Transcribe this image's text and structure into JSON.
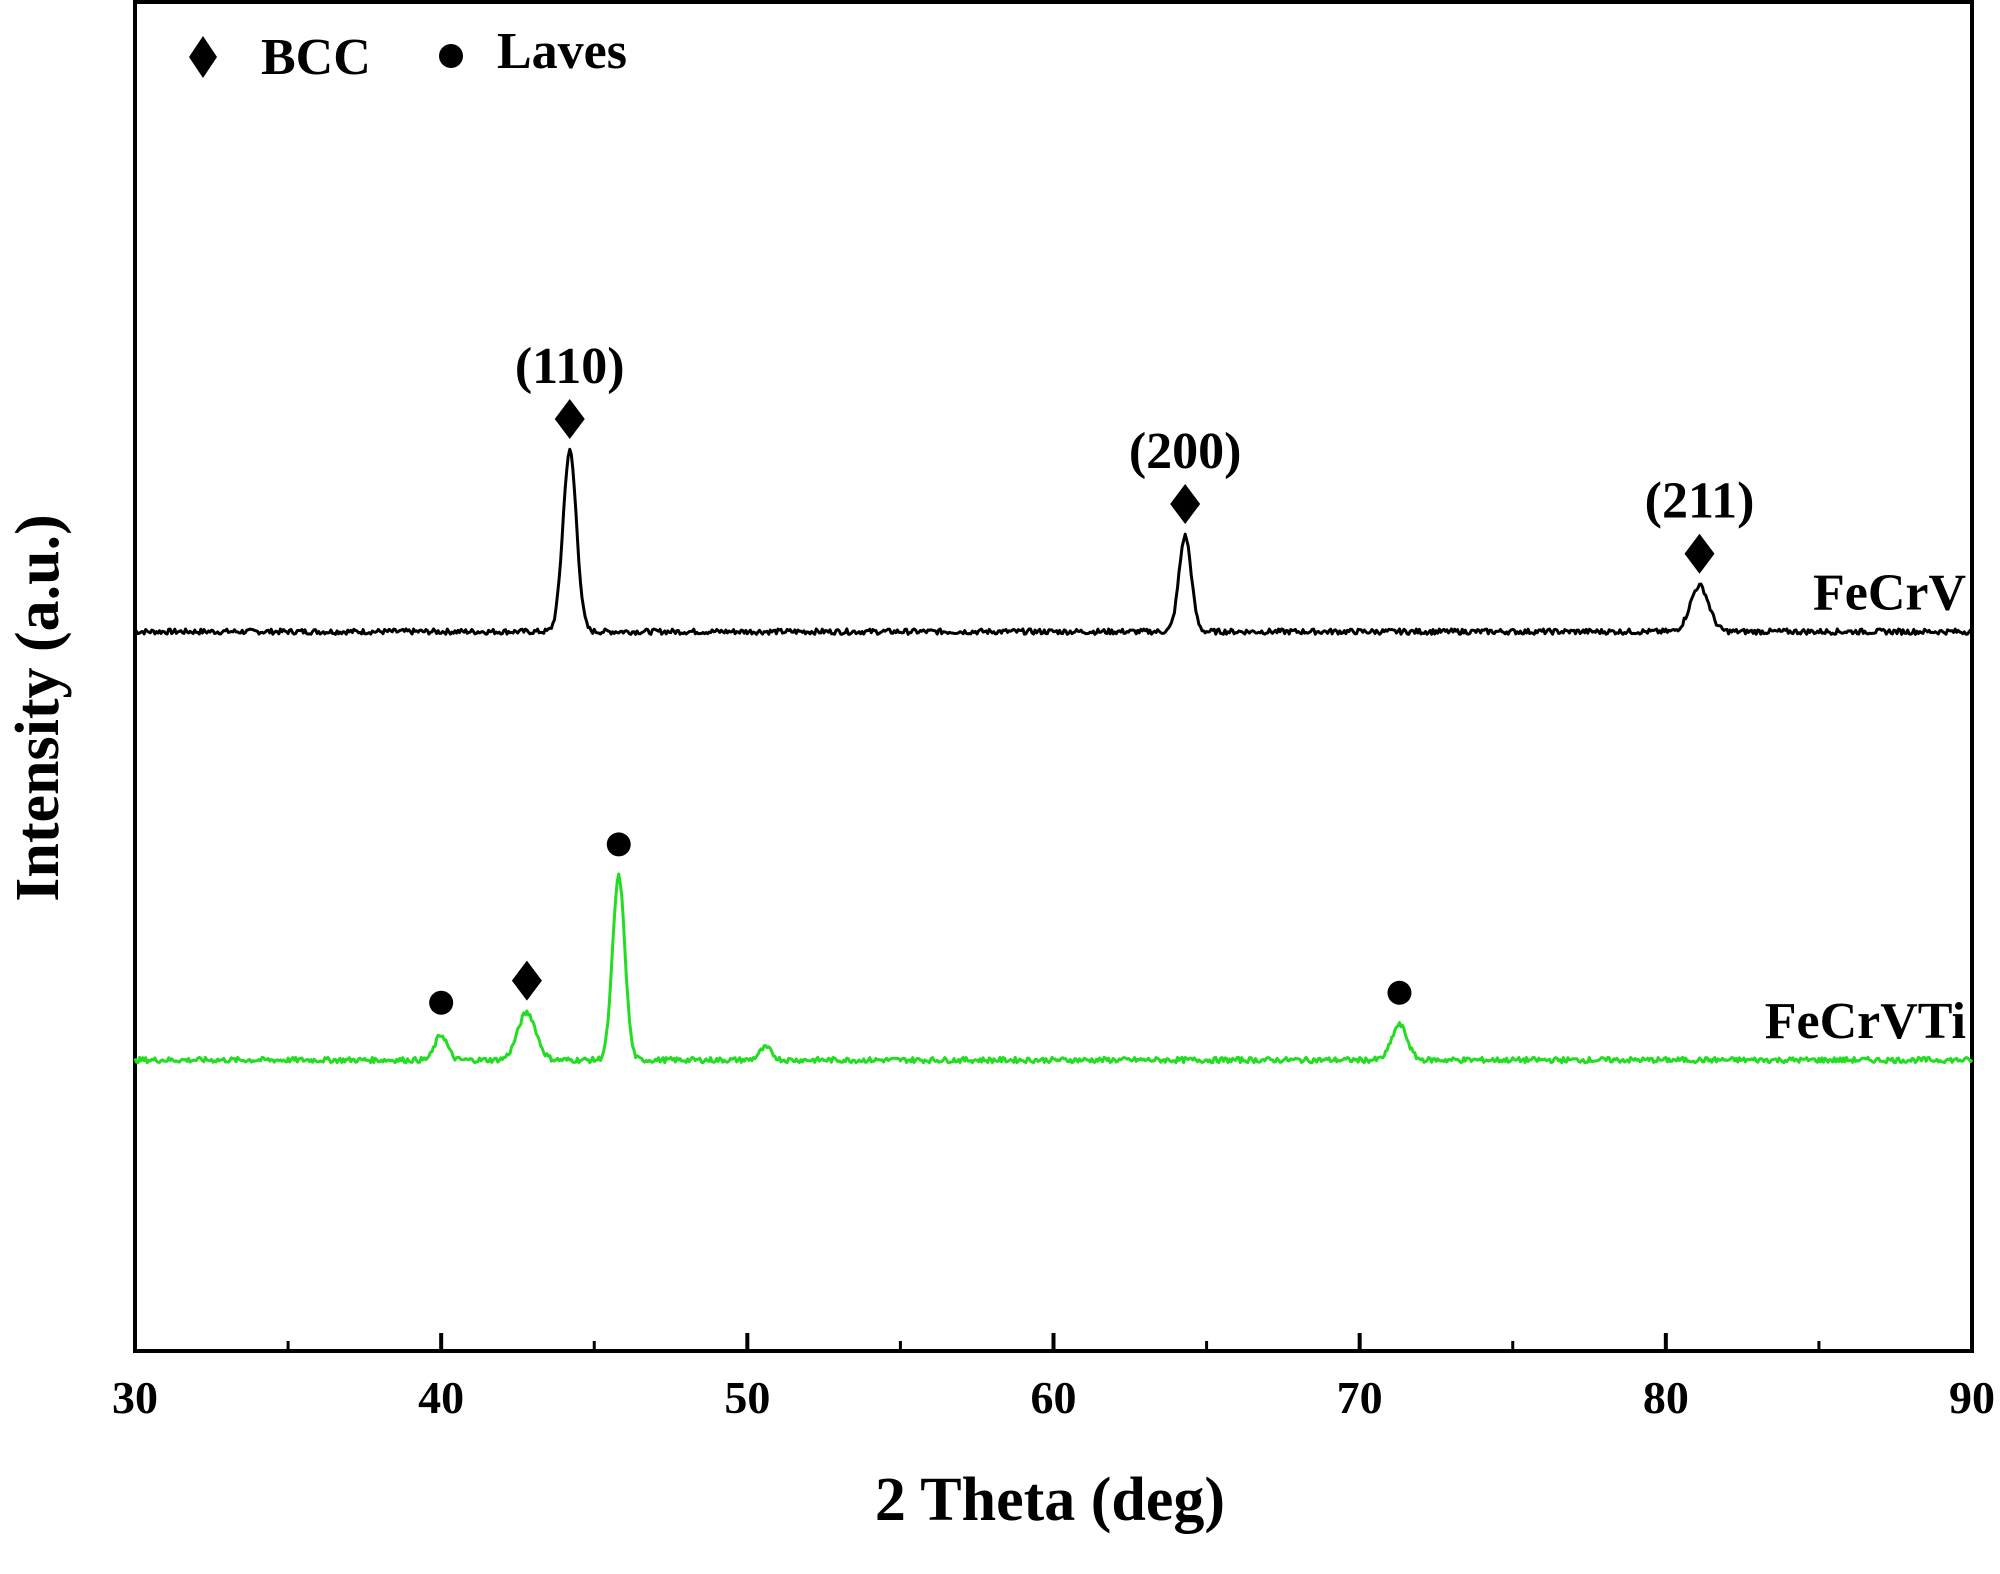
{
  "chart_data": {
    "type": "line",
    "xlabel": "2 Theta (deg)",
    "ylabel": "Intensity (a.u.)",
    "xlim": [
      30,
      90
    ],
    "xticks": [
      30,
      40,
      50,
      60,
      70,
      80,
      90
    ],
    "y_axis_ticks": "none",
    "grid": false,
    "legend": {
      "placement": "top-left",
      "entries": [
        {
          "marker": "diamond",
          "label": "BCC"
        },
        {
          "marker": "circle",
          "label": "Laves"
        }
      ]
    },
    "series": [
      {
        "name": "FeCrV",
        "color": "#000000",
        "baseline": 0.56,
        "peaks": [
          {
            "x": 44.2,
            "height": 0.236,
            "width": 0.22,
            "phase": "BCC",
            "label": "(110)"
          },
          {
            "x": 64.3,
            "height": 0.125,
            "width": 0.2,
            "phase": "BCC",
            "label": "(200)"
          },
          {
            "x": 81.1,
            "height": 0.06,
            "width": 0.3,
            "phase": "BCC",
            "label": "(211)"
          }
        ]
      },
      {
        "name": "FeCrVTi",
        "color": "#22dd22",
        "baseline": 0.0,
        "peaks": [
          {
            "x": 40.0,
            "height": 0.033,
            "width": 0.2,
            "phase": "Laves",
            "label": ""
          },
          {
            "x": 42.8,
            "height": 0.062,
            "width": 0.3,
            "phase": "BCC",
            "label": ""
          },
          {
            "x": 45.8,
            "height": 0.24,
            "width": 0.2,
            "phase": "Laves",
            "label": ""
          },
          {
            "x": 50.6,
            "height": 0.016,
            "width": 0.2,
            "phase": "",
            "label": ""
          },
          {
            "x": 71.3,
            "height": 0.046,
            "width": 0.25,
            "phase": "Laves",
            "label": ""
          }
        ]
      }
    ]
  }
}
